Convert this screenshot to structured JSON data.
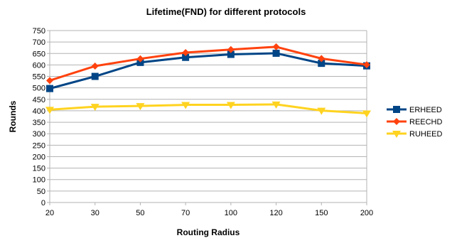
{
  "chart_data": {
    "type": "line",
    "title": "Lifetime(FND) for different protocols",
    "xlabel": "Routing Radius",
    "ylabel": "Rounds",
    "categories": [
      "20",
      "30",
      "50",
      "70",
      "100",
      "120",
      "150",
      "200"
    ],
    "ylim": [
      0,
      750
    ],
    "yticks": [
      0,
      50,
      100,
      150,
      200,
      250,
      300,
      350,
      400,
      450,
      500,
      550,
      600,
      650,
      700,
      750
    ],
    "grid": true,
    "legend_position": "right",
    "series": [
      {
        "name": "ERHEED",
        "color": "#004586",
        "marker": "square",
        "values": [
          497,
          550,
          611,
          633,
          646,
          651,
          607,
          596
        ]
      },
      {
        "name": "REECHD",
        "color": "#ff420e",
        "marker": "diamond",
        "values": [
          532,
          595,
          627,
          654,
          667,
          679,
          628,
          601
        ]
      },
      {
        "name": "RUHEED",
        "color": "#ffd320",
        "marker": "triangle-down",
        "values": [
          405,
          418,
          421,
          426,
          426,
          428,
          401,
          389
        ]
      }
    ]
  }
}
